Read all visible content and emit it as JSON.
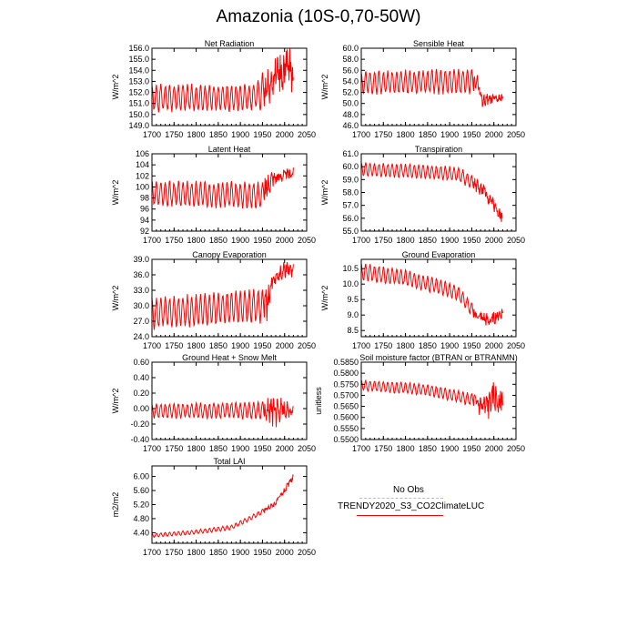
{
  "title": "Amazonia (10S-0,70-50W)",
  "colors": {
    "model": "#ff0000",
    "obs": "#b4b4ff",
    "axis": "#000000"
  },
  "legend": {
    "entries": [
      {
        "label": "No Obs",
        "color": "#b4b4ff",
        "style": "dashed"
      },
      {
        "label": "TRENDY2020_S3_CO2ClimateLUC",
        "color": "#ff0000",
        "style": "solid"
      }
    ]
  },
  "chart_data": [
    {
      "type": "line",
      "title": "Net Radiation",
      "ylabel": "W/m^2",
      "xlabel": "",
      "xlim": [
        1700,
        2050
      ],
      "xticks": [
        1700,
        1750,
        1800,
        1850,
        1900,
        1950,
        2000,
        2050
      ],
      "ylim": [
        149.0,
        156.0
      ],
      "yticks": [
        149.0,
        150.0,
        151.0,
        152.0,
        153.0,
        154.0,
        155.0,
        156.0
      ],
      "ydec": 1,
      "series": [
        {
          "name": "TRENDY2020_S3_CO2ClimateLUC",
          "years": [
            1700,
            2020
          ],
          "base": [
            [
              1700,
              151.5
            ],
            [
              1920,
              151.5
            ],
            [
              1950,
              152.0
            ],
            [
              1980,
              153.5
            ],
            [
              2000,
              154.0
            ],
            [
              2020,
              154.0
            ]
          ],
          "amp": [
            [
              1700,
              1.3
            ],
            [
              1935,
              1.3
            ],
            [
              1950,
              2.0
            ],
            [
              2020,
              2.0
            ]
          ],
          "cycle": 10,
          "seed": 1
        }
      ]
    },
    {
      "type": "line",
      "title": "Sensible Heat",
      "ylabel": "W/m^2",
      "xlabel": "",
      "xlim": [
        1700,
        2050
      ],
      "xticks": [
        1700,
        1750,
        1800,
        1850,
        1900,
        1950,
        2000,
        2050
      ],
      "ylim": [
        46.0,
        60.0
      ],
      "yticks": [
        46.0,
        48.0,
        50.0,
        52.0,
        54.0,
        56.0,
        58.0,
        60.0
      ],
      "ydec": 1,
      "series": [
        {
          "name": "TRENDY2020_S3_CO2ClimateLUC",
          "years": [
            1700,
            2020
          ],
          "base": [
            [
              1700,
              53.8
            ],
            [
              1950,
              54.0
            ],
            [
              1962,
              54.5
            ],
            [
              1972,
              50.5
            ],
            [
              2020,
              51.0
            ]
          ],
          "amp": [
            [
              1700,
              2.2
            ],
            [
              1955,
              2.4
            ],
            [
              1970,
              1.4
            ],
            [
              2020,
              0.8
            ]
          ],
          "cycle": 10,
          "seed": 2
        }
      ]
    },
    {
      "type": "line",
      "title": "Latent Heat",
      "ylabel": "W/m^2",
      "xlabel": "",
      "xlim": [
        1700,
        2050
      ],
      "xticks": [
        1700,
        1750,
        1800,
        1850,
        1900,
        1950,
        2000,
        2050
      ],
      "ylim": [
        92,
        106
      ],
      "yticks": [
        92,
        94,
        96,
        98,
        100,
        102,
        104,
        106
      ],
      "ydec": 0,
      "series": [
        {
          "name": "TRENDY2020_S3_CO2ClimateLUC",
          "years": [
            1700,
            2020
          ],
          "base": [
            [
              1700,
              98.8
            ],
            [
              1950,
              98.5
            ],
            [
              1970,
              101.5
            ],
            [
              2020,
              102.5
            ]
          ],
          "amp": [
            [
              1700,
              2.4
            ],
            [
              1960,
              2.6
            ],
            [
              1975,
              1.4
            ],
            [
              2020,
              1.0
            ]
          ],
          "cycle": 10,
          "seed": 3
        }
      ]
    },
    {
      "type": "line",
      "title": "Transpiration",
      "ylabel": "W/m^2",
      "xlabel": "",
      "xlim": [
        1700,
        2050
      ],
      "xticks": [
        1700,
        1750,
        1800,
        1850,
        1900,
        1950,
        2000,
        2050
      ],
      "ylim": [
        55.0,
        61.0
      ],
      "yticks": [
        55.0,
        56.0,
        57.0,
        58.0,
        59.0,
        60.0,
        61.0
      ],
      "ydec": 1,
      "series": [
        {
          "name": "TRENDY2020_S3_CO2ClimateLUC",
          "years": [
            1700,
            2020
          ],
          "base": [
            [
              1700,
              59.8
            ],
            [
              1850,
              59.6
            ],
            [
              1920,
              59.4
            ],
            [
              1950,
              58.8
            ],
            [
              1980,
              58.0
            ],
            [
              2000,
              57.0
            ],
            [
              2020,
              56.0
            ]
          ],
          "amp": [
            [
              1700,
              0.55
            ],
            [
              1950,
              0.6
            ],
            [
              2020,
              0.45
            ]
          ],
          "cycle": 10,
          "seed": 4
        }
      ]
    },
    {
      "type": "line",
      "title": "Canopy Evaporation",
      "ylabel": "W/m^2",
      "xlabel": "",
      "xlim": [
        1700,
        2050
      ],
      "xticks": [
        1700,
        1750,
        1800,
        1850,
        1900,
        1950,
        2000,
        2050
      ],
      "ylim": [
        24.0,
        39.0
      ],
      "yticks": [
        24.0,
        27.0,
        30.0,
        33.0,
        36.0,
        39.0
      ],
      "ydec": 1,
      "series": [
        {
          "name": "TRENDY2020_S3_CO2ClimateLUC",
          "years": [
            1700,
            2020
          ],
          "base": [
            [
              1700,
              28.5
            ],
            [
              1950,
              30.0
            ],
            [
              1960,
              30.5
            ],
            [
              1975,
              35.0
            ],
            [
              2000,
              37.0
            ],
            [
              2020,
              37.0
            ]
          ],
          "amp": [
            [
              1700,
              3.2
            ],
            [
              1958,
              3.5
            ],
            [
              1970,
              1.6
            ],
            [
              2020,
              1.4
            ]
          ],
          "cycle": 10,
          "seed": 5
        }
      ]
    },
    {
      "type": "line",
      "title": "Ground Evaporation",
      "ylabel": "W/m^2",
      "xlabel": "",
      "xlim": [
        1700,
        2050
      ],
      "xticks": [
        1700,
        1750,
        1800,
        1850,
        1900,
        1950,
        2000,
        2050
      ],
      "ylim": [
        8.3,
        10.8
      ],
      "yticks": [
        8.5,
        9.0,
        9.5,
        10.0,
        10.5
      ],
      "ydec": 1,
      "series": [
        {
          "name": "TRENDY2020_S3_CO2ClimateLUC",
          "years": [
            1700,
            2020
          ],
          "base": [
            [
              1700,
              10.4
            ],
            [
              1800,
              10.2
            ],
            [
              1880,
              9.9
            ],
            [
              1920,
              9.7
            ],
            [
              1960,
              9.0
            ],
            [
              1990,
              8.8
            ],
            [
              2020,
              9.1
            ]
          ],
          "amp": [
            [
              1700,
              0.3
            ],
            [
              2020,
              0.22
            ]
          ],
          "cycle": 10,
          "seed": 6
        }
      ]
    },
    {
      "type": "line",
      "title": "Ground Heat + Snow Melt",
      "ylabel": "W/m^2",
      "xlabel": "",
      "xlim": [
        1700,
        2050
      ],
      "xticks": [
        1700,
        1750,
        1800,
        1850,
        1900,
        1950,
        2000,
        2050
      ],
      "ylim": [
        -0.4,
        0.6
      ],
      "yticks": [
        -0.4,
        -0.2,
        0.0,
        0.2,
        0.4,
        0.6
      ],
      "ydec": 2,
      "series": [
        {
          "name": "TRENDY2020_S3_CO2ClimateLUC",
          "years": [
            1700,
            2020
          ],
          "base": [
            [
              1700,
              -0.03
            ],
            [
              2020,
              -0.02
            ]
          ],
          "amp": [
            [
              1700,
              0.1
            ],
            [
              1950,
              0.12
            ],
            [
              1975,
              0.28
            ],
            [
              2000,
              0.12
            ],
            [
              2020,
              0.1
            ]
          ],
          "cycle": 10,
          "seed": 7
        }
      ]
    },
    {
      "type": "line",
      "title": "Soil moisture factor (BTRAN or BTRANMN)",
      "ylabel": "unitless",
      "xlabel": "",
      "xlim": [
        1700,
        2050
      ],
      "xticks": [
        1700,
        1750,
        1800,
        1850,
        1900,
        1950,
        2000,
        2050
      ],
      "ylim": [
        0.55,
        0.585
      ],
      "yticks": [
        0.55,
        0.555,
        0.56,
        0.565,
        0.57,
        0.575,
        0.58,
        0.585
      ],
      "ydec": 4,
      "series": [
        {
          "name": "TRENDY2020_S3_CO2ClimateLUC",
          "years": [
            1700,
            2020
          ],
          "base": [
            [
              1700,
              0.5745
            ],
            [
              1850,
              0.5725
            ],
            [
              1950,
              0.568
            ],
            [
              1980,
              0.564
            ],
            [
              2000,
              0.569
            ],
            [
              2020,
              0.568
            ]
          ],
          "amp": [
            [
              1700,
              0.0025
            ],
            [
              1950,
              0.003
            ],
            [
              1990,
              0.008
            ],
            [
              2020,
              0.006
            ]
          ],
          "cycle": 10,
          "seed": 8
        }
      ]
    },
    {
      "type": "line",
      "title": "Total LAI",
      "ylabel": "m2/m2",
      "xlabel": "",
      "xlim": [
        1700,
        2050
      ],
      "xticks": [
        1700,
        1750,
        1800,
        1850,
        1900,
        1950,
        2000,
        2050
      ],
      "ylim": [
        4.1,
        6.3
      ],
      "yticks": [
        4.4,
        4.8,
        5.2,
        5.6,
        6.0
      ],
      "ydec": 2,
      "series": [
        {
          "name": "TRENDY2020_S3_CO2ClimateLUC",
          "years": [
            1700,
            2020
          ],
          "base": [
            [
              1700,
              4.32
            ],
            [
              1800,
              4.42
            ],
            [
              1880,
              4.55
            ],
            [
              1920,
              4.8
            ],
            [
              1950,
              5.0
            ],
            [
              1980,
              5.25
            ],
            [
              2000,
              5.6
            ],
            [
              2020,
              6.0
            ]
          ],
          "amp": [
            [
              1700,
              0.06
            ],
            [
              2020,
              0.08
            ]
          ],
          "cycle": 10,
          "seed": 9
        }
      ]
    }
  ]
}
